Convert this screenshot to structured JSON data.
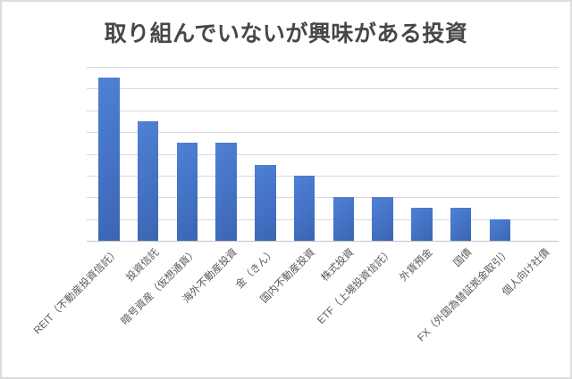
{
  "figure": {
    "background": "#ffffff",
    "border_color": "#dcdcdc"
  },
  "chart_data": {
    "type": "bar",
    "title": "取り組んでいないが興味がある投資",
    "categories": [
      "REIT（不動産投資信託）",
      "投資信託",
      "暗号資産（仮想通貨）",
      "海外不動産投資",
      "金（きん）",
      "国内不動産投資",
      "株式投資",
      "ETF（上場投資信託）",
      "外貨預金",
      "国債",
      "FX（外国為替証拠金取引）",
      "個人向け社債"
    ],
    "values": [
      15,
      11,
      9,
      9,
      7,
      6,
      4,
      4,
      3,
      3,
      2,
      0
    ],
    "xlabel": "",
    "ylabel": "",
    "ylim": [
      0,
      16
    ],
    "gridline_interval": 2,
    "y_axis_labels_visible": false,
    "legend": "none",
    "grid": "horizontal",
    "colors": {
      "bar_fill": "#4472c4",
      "bar_fill_light": "#5081d4",
      "bar_fill_dark": "#3b65b2",
      "gridline": "#d9d9d9",
      "axis_line": "#c4c4c4",
      "title_text": "#474747",
      "label_text": "#595959"
    }
  }
}
